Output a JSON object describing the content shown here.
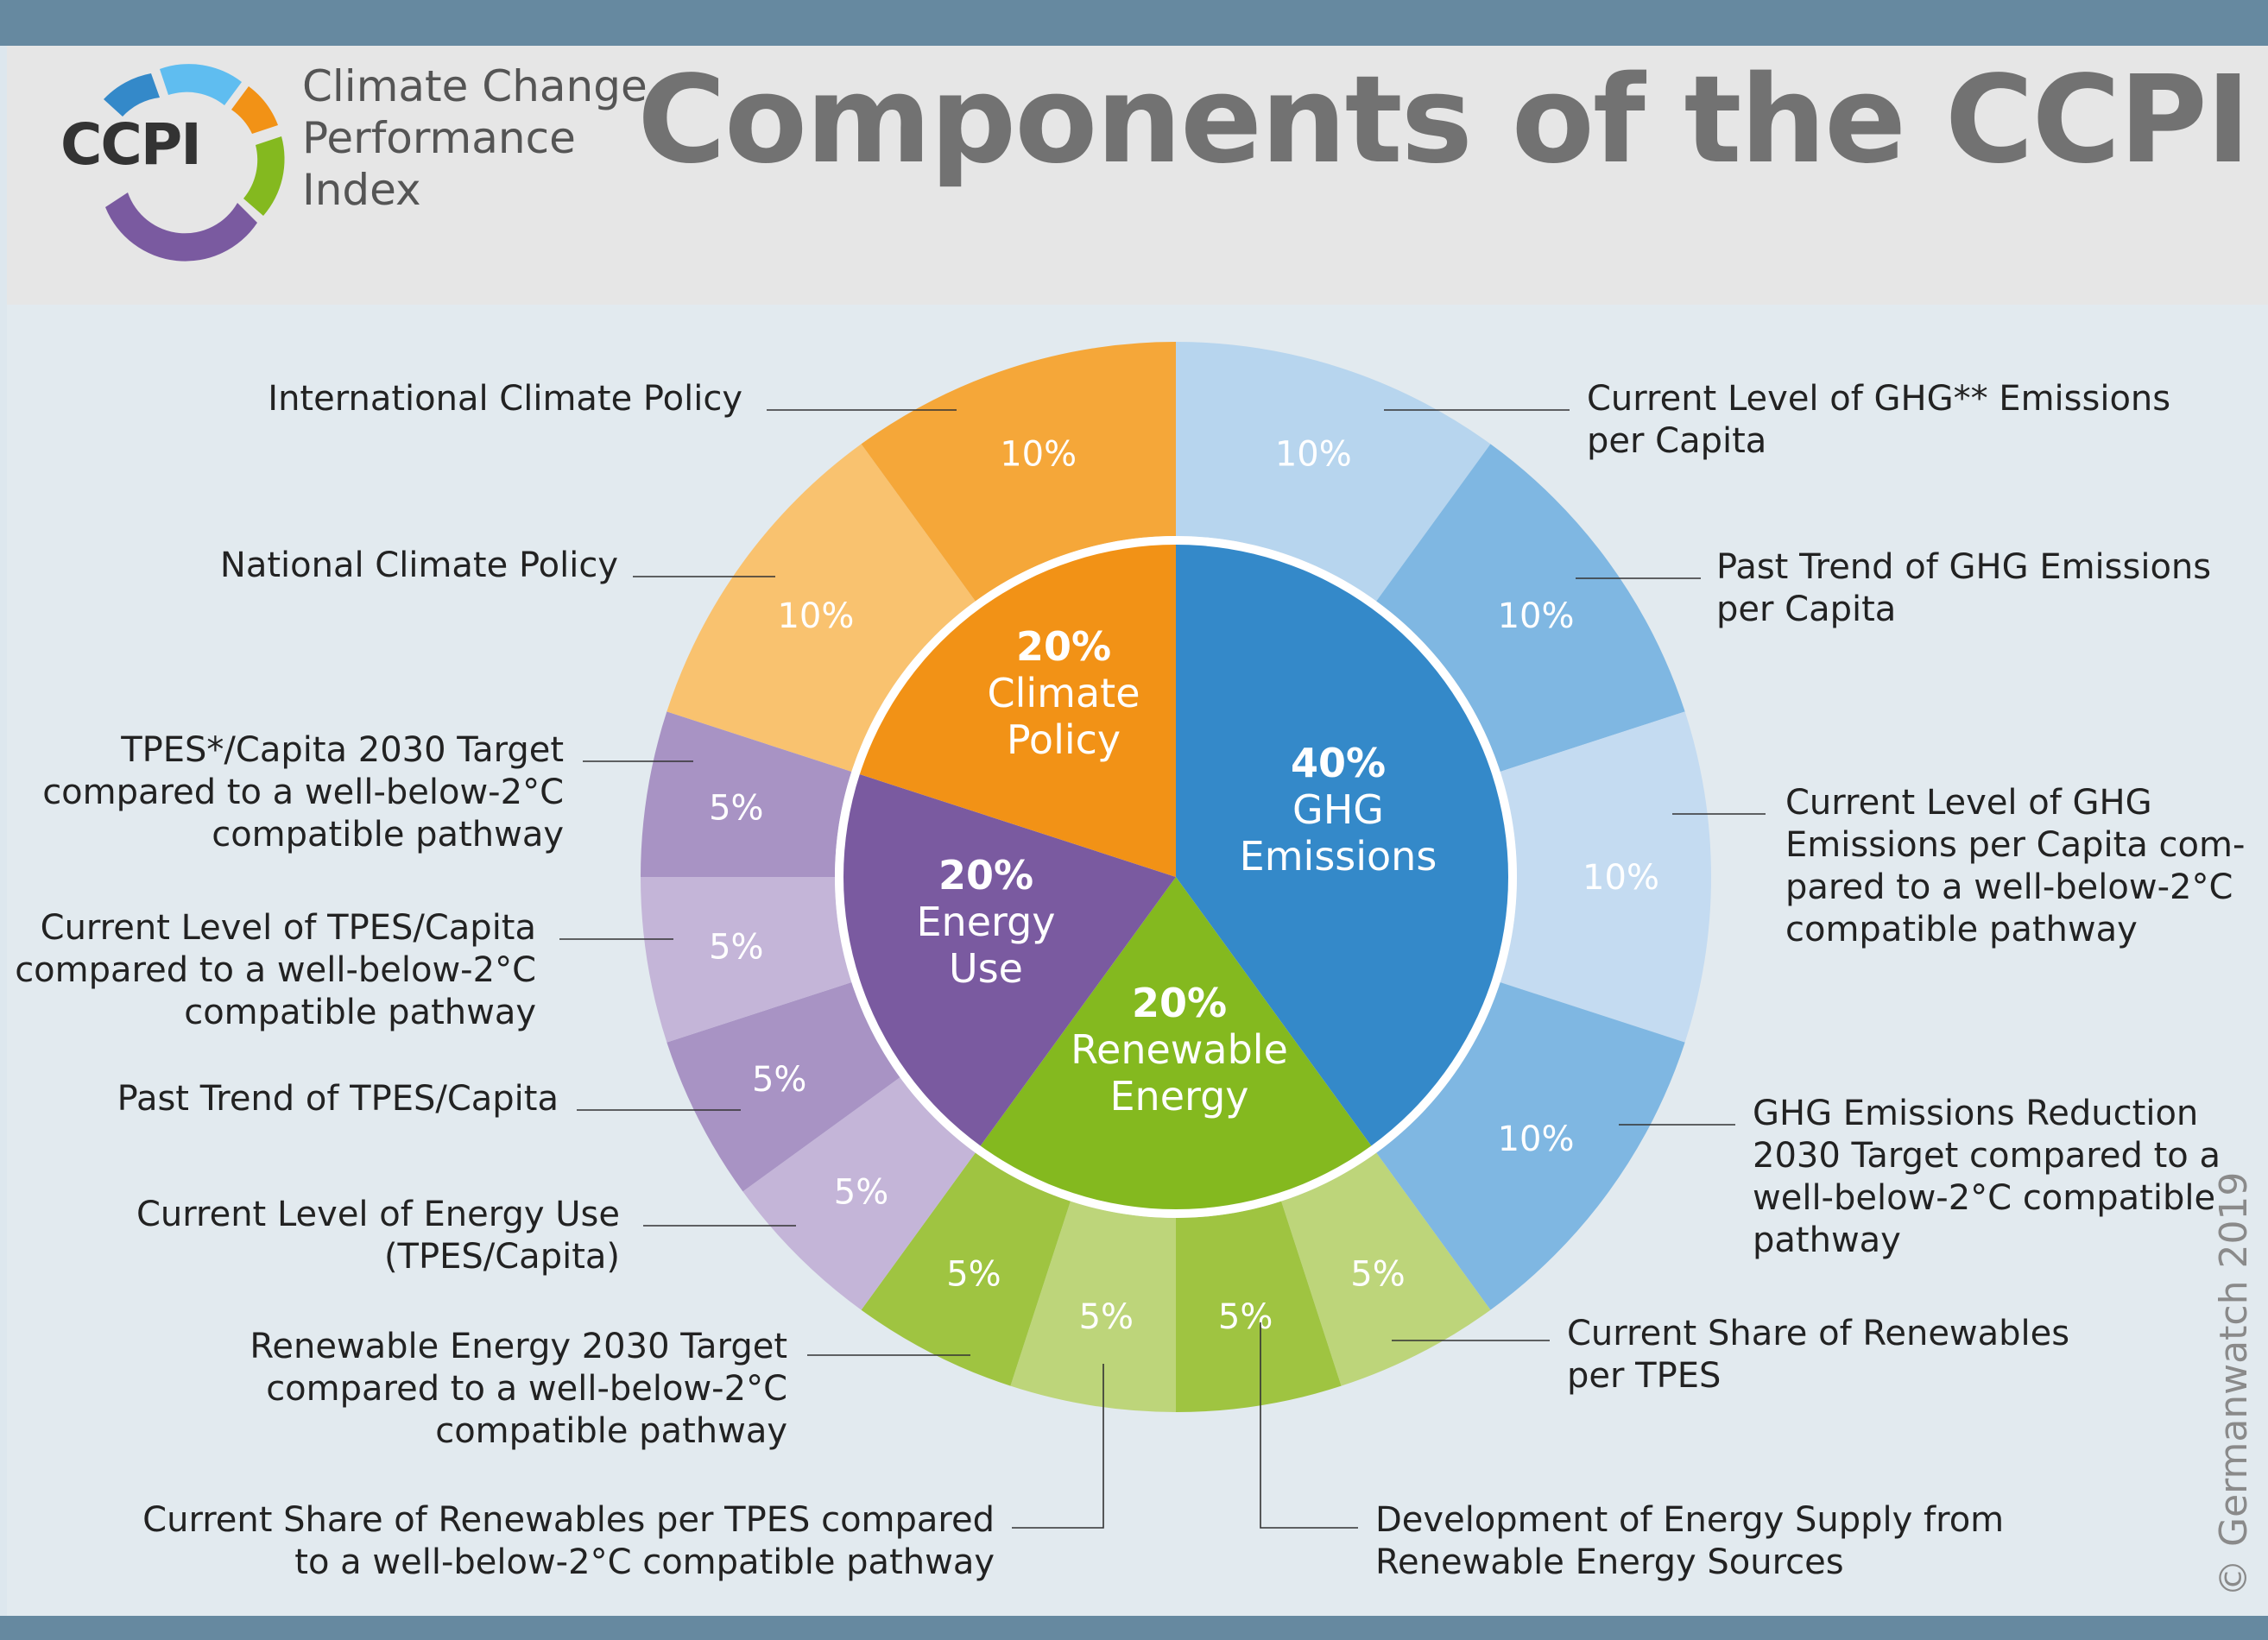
{
  "header": {
    "logo": {
      "abbr": "CCPI",
      "lines": [
        "Climate Change",
        "Performance",
        "Index"
      ]
    },
    "title": "Components of the CCPI"
  },
  "copyright": "© Germanwatch 2019",
  "colors": {
    "band": "#6689a0",
    "ghg": "#3489c9",
    "renewable": "#84b91f",
    "energy": "#7a5aa0",
    "climate": "#f29216"
  },
  "chart_data": {
    "type": "pie",
    "inner": [
      {
        "key": "ghg",
        "value": 40,
        "pct": "40%",
        "lines": [
          "GHG",
          "Emissions"
        ],
        "color": "#3489c9"
      },
      {
        "key": "renewable",
        "value": 20,
        "pct": "20%",
        "lines": [
          "Renewable",
          "Energy"
        ],
        "color": "#84b91f"
      },
      {
        "key": "energy",
        "value": 20,
        "pct": "20%",
        "lines": [
          "Energy",
          "Use"
        ],
        "color": "#7a5aa0"
      },
      {
        "key": "climate",
        "value": 20,
        "pct": "20%",
        "lines": [
          "Climate",
          "Policy"
        ],
        "color": "#f29216"
      }
    ],
    "outer": [
      {
        "value": 10,
        "pct": "10%",
        "color": "#b7d5ee",
        "side": "right",
        "label": [
          "Current Level of GHG** Emissions",
          "per Capita"
        ]
      },
      {
        "value": 10,
        "pct": "10%",
        "color": "#7fb7e2",
        "side": "right",
        "label": [
          "Past Trend of GHG Emissions",
          "per Capita"
        ]
      },
      {
        "value": 10,
        "pct": "10%",
        "color": "#c4dbf1",
        "side": "right",
        "label": [
          "Current Level of GHG",
          "Emissions per Capita com-",
          "pared to a well-below-2°C",
          "compatible pathway"
        ]
      },
      {
        "value": 10,
        "pct": "10%",
        "color": "#7fb7e2",
        "side": "right",
        "label": [
          "GHG Emissions Reduction",
          "2030 Target compared to a",
          "well-below-2°C compatible",
          "pathway"
        ]
      },
      {
        "value": 5,
        "pct": "5%",
        "color": "#bdd57a",
        "side": "right",
        "label": [
          "Current Share of Renewables",
          "per TPES"
        ]
      },
      {
        "value": 5,
        "pct": "5%",
        "color": "#9fc441",
        "side": "bottom-right",
        "label": [
          "Development of Energy Supply from",
          "Renewable Energy Sources"
        ]
      },
      {
        "value": 5,
        "pct": "5%",
        "color": "#bdd57a",
        "side": "bottom-left",
        "label": [
          "Current Share of Renewables per TPES compared",
          "to a well-below-2°C compatible pathway"
        ]
      },
      {
        "value": 5,
        "pct": "5%",
        "color": "#9fc441",
        "side": "left",
        "label": [
          "Renewable Energy 2030 Target",
          "compared to a well-below-2°C",
          "compatible pathway"
        ]
      },
      {
        "value": 5,
        "pct": "5%",
        "color": "#c4b5d8",
        "side": "left",
        "label": [
          "Current Level of Energy Use",
          "(TPES/Capita)"
        ]
      },
      {
        "value": 5,
        "pct": "5%",
        "color": "#a893c4",
        "side": "left",
        "label": [
          "Past Trend of TPES/Capita"
        ]
      },
      {
        "value": 5,
        "pct": "5%",
        "color": "#c4b5d8",
        "side": "left",
        "label": [
          "Current Level of TPES/Capita",
          "compared to a well-below-2°C",
          "compatible pathway"
        ]
      },
      {
        "value": 5,
        "pct": "5%",
        "color": "#a893c4",
        "side": "left",
        "label": [
          "TPES*/Capita 2030 Target",
          "compared to a well-below-2°C",
          "compatible pathway"
        ]
      },
      {
        "value": 10,
        "pct": "10%",
        "color": "#f9c26f",
        "side": "left",
        "label": [
          "National Climate Policy"
        ]
      },
      {
        "value": 10,
        "pct": "10%",
        "color": "#f5a739",
        "side": "left",
        "label": [
          "International Climate Policy"
        ]
      }
    ]
  }
}
